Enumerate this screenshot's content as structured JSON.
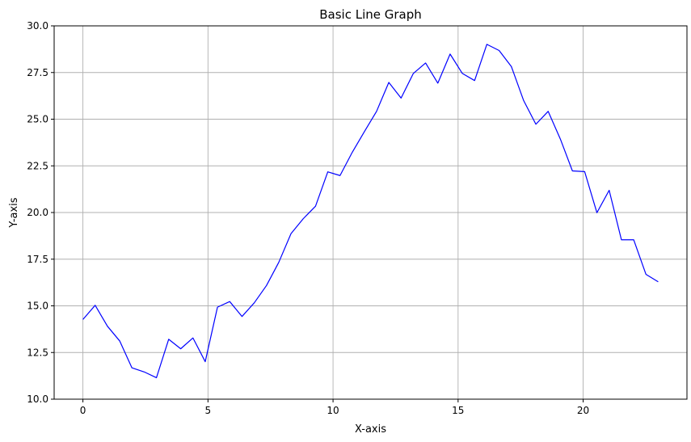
{
  "chart_data": {
    "type": "line",
    "title": "Basic Line Graph",
    "xlabel": "X-axis",
    "ylabel": "Y-axis",
    "xlim": [
      -1.15,
      24.15
    ],
    "ylim": [
      10.0,
      30.0
    ],
    "grid": true,
    "x_ticks": [
      0,
      5,
      10,
      15,
      20
    ],
    "x_tick_labels": [
      "0",
      "5",
      "10",
      "15",
      "20"
    ],
    "y_ticks": [
      10.0,
      12.5,
      15.0,
      17.5,
      20.0,
      22.5,
      25.0,
      27.5,
      30.0
    ],
    "y_tick_labels": [
      "10.0",
      "12.5",
      "15.0",
      "17.5",
      "20.0",
      "22.5",
      "25.0",
      "27.5",
      "30.0"
    ],
    "series": [
      {
        "color": "#0000ff",
        "x": [
          0.0,
          0.49,
          0.98,
          1.47,
          1.96,
          2.45,
          2.94,
          3.43,
          3.91,
          4.4,
          4.89,
          5.38,
          5.87,
          6.36,
          6.85,
          7.34,
          7.83,
          8.32,
          8.81,
          9.3,
          9.79,
          10.28,
          10.77,
          11.26,
          11.74,
          12.23,
          12.72,
          13.21,
          13.7,
          14.19,
          14.68,
          15.17,
          15.66,
          16.15,
          16.64,
          17.13,
          17.62,
          18.11,
          18.6,
          19.09,
          19.57,
          20.06,
          20.55,
          21.04,
          21.53,
          22.02,
          22.51,
          23.0
        ],
        "y": [
          14.27,
          15.03,
          13.91,
          13.12,
          11.68,
          11.46,
          11.15,
          13.21,
          12.7,
          13.28,
          12.01,
          14.93,
          15.23,
          14.43,
          15.16,
          16.09,
          17.33,
          18.87,
          19.67,
          20.34,
          22.18,
          21.98,
          23.23,
          24.35,
          25.42,
          26.97,
          26.13,
          27.45,
          28.01,
          26.93,
          28.49,
          27.45,
          27.07,
          29.01,
          28.68,
          27.82,
          26.0,
          24.73,
          25.42,
          23.93,
          22.23,
          22.19,
          19.99,
          21.19,
          18.54,
          18.54,
          16.69,
          16.29
        ]
      }
    ]
  }
}
